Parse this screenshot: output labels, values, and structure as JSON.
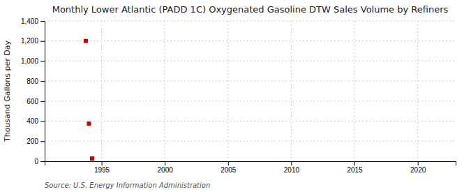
{
  "chart_data": {
    "type": "scatter",
    "title": "Monthly Lower Atlantic (PADD 1C) Oxygenated Gasoline DTW Sales Volume by Refiners",
    "y_label": "Thousand Gallons per Day",
    "source": "Source: U.S. Energy Information Administration",
    "x": [
      1993.75,
      1994.0,
      1994.25
    ],
    "values": [
      1200,
      375,
      28
    ],
    "color": "#cc0000",
    "marker": "square",
    "xlim": [
      1990.5,
      2023
    ],
    "ylim": [
      0,
      1400
    ],
    "xticks": [
      1995,
      2000,
      2005,
      2010,
      2015,
      2020
    ],
    "yticks": [
      0,
      200,
      400,
      600,
      800,
      {
        "value": 1000,
        "label": "1,000"
      },
      {
        "value": 1200,
        "label": "1,200"
      },
      {
        "value": 1400,
        "label": "1,400"
      }
    ],
    "grid": true
  }
}
